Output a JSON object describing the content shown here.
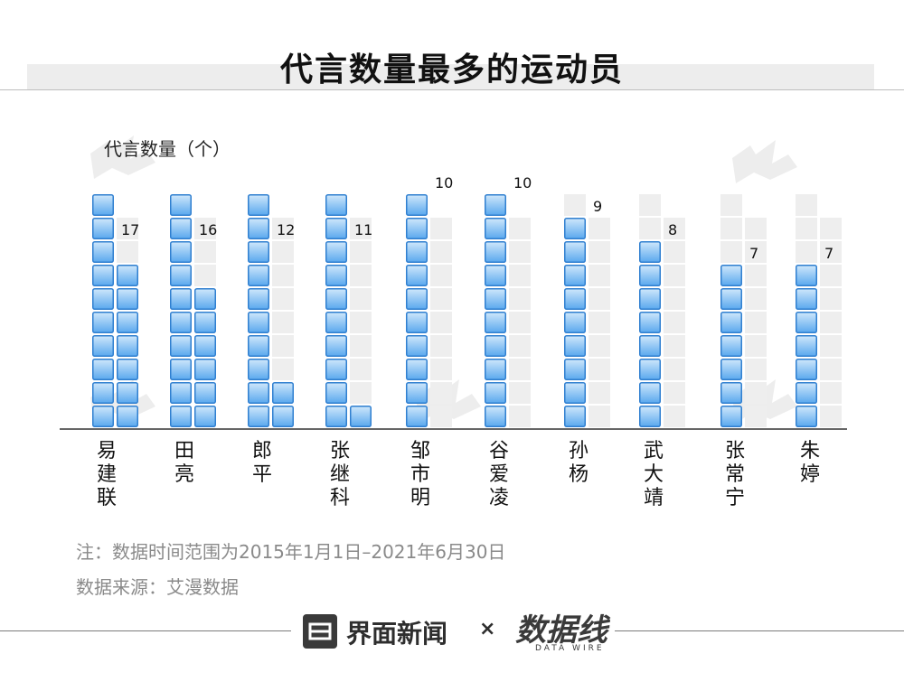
{
  "title": "代言数量最多的运动员",
  "ylabel": "代言数量（个）",
  "notes": {
    "range": "注：数据时间范围为2015年1月1日–2021年6月30日",
    "source": "数据来源：艾漫数据"
  },
  "footer": {
    "brand": "界面新闻",
    "separator": "×",
    "partner_logo": "数据线",
    "partner_sub": "DATA WIRE"
  },
  "colors": {
    "bar_fill_top": "#cfe7fb",
    "bar_fill_bottom": "#5aa8ee",
    "bar_border": "#2f7fd0",
    "empty_cell": "#eeeeee",
    "axis": "#333333"
  },
  "chart_data": {
    "type": "bar",
    "title": "代言数量最多的运动员",
    "ylabel": "代言数量（个）",
    "unit_per_block": 1,
    "max_capacity": 20,
    "categories": [
      "易建联",
      "田亮",
      "郎平",
      "张继科",
      "邹市明",
      "谷爱凌",
      "孙杨",
      "武大靖",
      "张常宁",
      "朱婷"
    ],
    "values": [
      17,
      16,
      12,
      11,
      10,
      10,
      9,
      8,
      7,
      7
    ],
    "data_labels": [
      "17",
      "16",
      "12",
      "11",
      "10",
      "10",
      "9",
      "8",
      "7",
      "7"
    ],
    "grid": false,
    "legend": "none"
  }
}
